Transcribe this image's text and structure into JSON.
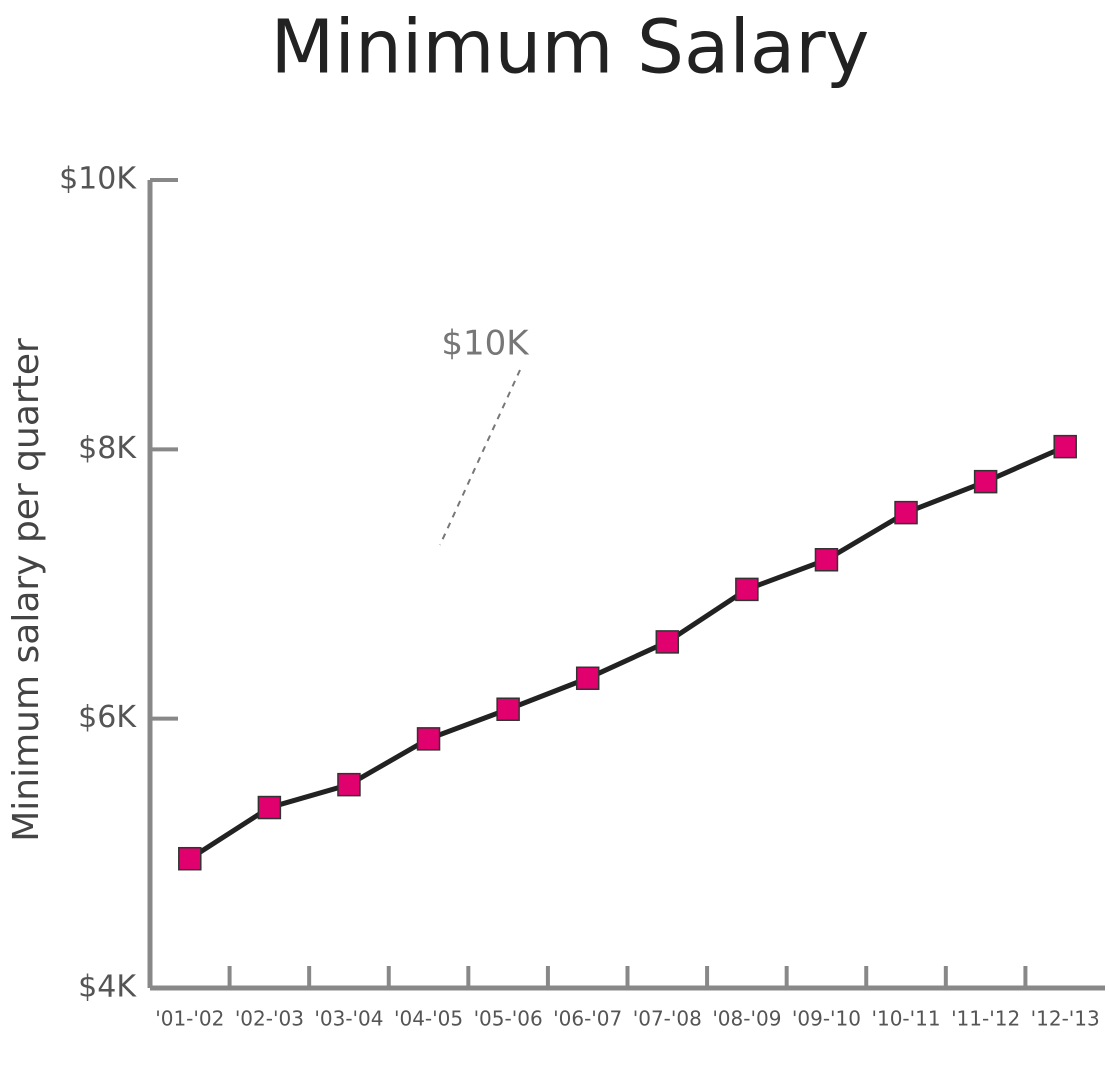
{
  "chart_data": {
    "type": "line",
    "title": "Minimum Salary",
    "y_label": "Minimum salary per quarter",
    "annotation": "$10K",
    "categories": [
      "'01-'02",
      "'02-'03",
      "'03-'04",
      "'04-'05",
      "'05-'06",
      "'06-'07",
      "'07-'08",
      "'08-'09",
      "'09-'10",
      "'10-'11",
      "'11-'12",
      "'12-'13"
    ],
    "values": [
      4.96,
      5.34,
      5.51,
      5.85,
      6.07,
      6.3,
      6.57,
      6.96,
      7.18,
      7.53,
      7.76,
      8.02
    ],
    "line_color": "#222222",
    "marker_color": "#e0006e",
    "ylim": [
      4,
      10
    ],
    "yticks": [
      {
        "value": 4,
        "label": "$4K"
      },
      {
        "value": 6,
        "label": "$6K"
      },
      {
        "value": 8,
        "label": "$8K"
      },
      {
        "value": 10,
        "label": "$10K"
      }
    ]
  }
}
